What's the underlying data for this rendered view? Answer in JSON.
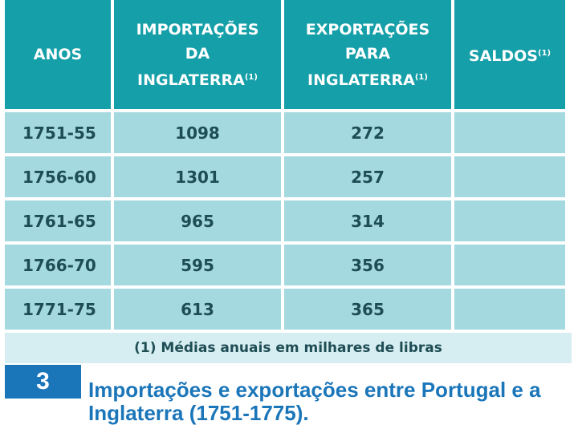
{
  "table": {
    "headers": {
      "anos": [
        "ANOS"
      ],
      "importacoes": [
        "IMPORTAÇÕES",
        "DA",
        "INGLATERRA"
      ],
      "exportacoes": [
        "EXPORTAÇÕES",
        "PARA",
        "INGLATERRA"
      ],
      "saldos": [
        "SALDOS"
      ],
      "footnote_marker": "(1)"
    },
    "rows": [
      {
        "anos": "1751-55",
        "importacoes": "1098",
        "exportacoes": "272",
        "saldos": ""
      },
      {
        "anos": "1756-60",
        "importacoes": "1301",
        "exportacoes": "257",
        "saldos": ""
      },
      {
        "anos": "1761-65",
        "importacoes": "965",
        "exportacoes": "314",
        "saldos": ""
      },
      {
        "anos": "1766-70",
        "importacoes": "595",
        "exportacoes": "356",
        "saldos": ""
      },
      {
        "anos": "1771-75",
        "importacoes": "613",
        "exportacoes": "365",
        "saldos": ""
      }
    ],
    "note": "(1) Médias anuais em milhares de libras"
  },
  "caption": {
    "number": "3",
    "text": "Importações e exportações entre Portugal e a Inglaterra (1751-1775)."
  },
  "colors": {
    "header_bg": "#159fa8",
    "cell_bg": "#a3d9df",
    "note_bg": "#d6eef1",
    "caption_blue": "#1b76b9"
  }
}
